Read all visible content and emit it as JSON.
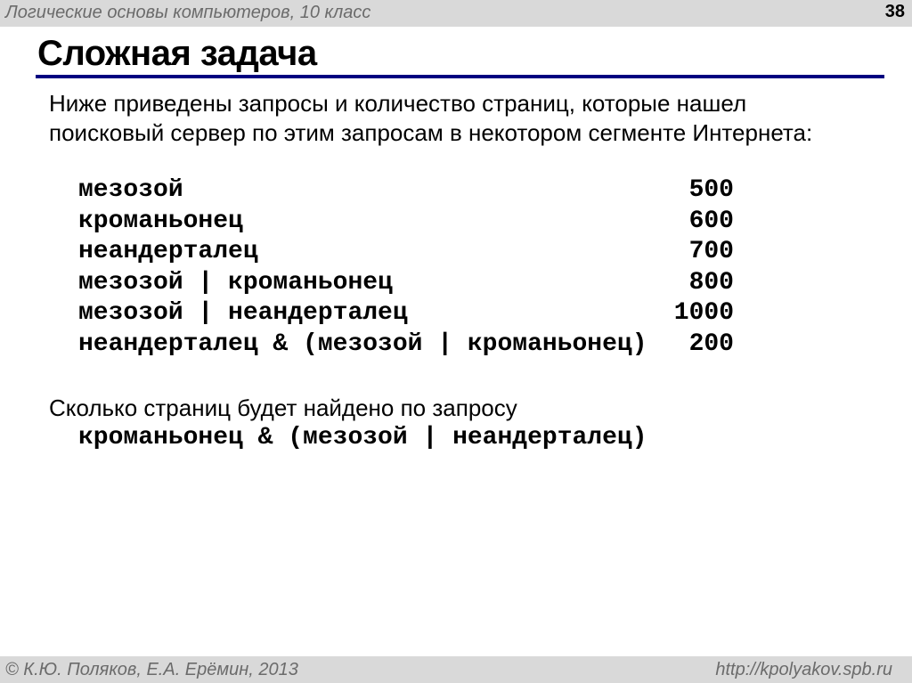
{
  "header": {
    "course": "Логические основы компьютеров, 10 класс",
    "page_number": "38"
  },
  "slide": {
    "title": "Сложная задача",
    "intro": "Ниже приведены запросы и количество страниц, которые нашел поисковый сервер по этим запросам в некотором сегменте Интернета:",
    "queries": [
      {
        "query": "мезозой",
        "pages": "500"
      },
      {
        "query": "кроманьонец",
        "pages": "600"
      },
      {
        "query": "неандерталец",
        "pages": "700"
      },
      {
        "query": "мезозой | кроманьонец",
        "pages": "800"
      },
      {
        "query": "мезозой | неандерталец",
        "pages": "1000"
      },
      {
        "query": "неандерталец & (мезозой | кроманьонец)",
        "pages": "200"
      }
    ],
    "question": "Сколько страниц будет найдено по запросу",
    "target_query": "кроманьонец & (мезозой | неандерталец)"
  },
  "footer": {
    "authors": "© К.Ю. Поляков, Е.А. Ерёмин, 2013",
    "url": "http://kpolyakov.spb.ru"
  },
  "colors": {
    "bar": "#d9d9d9",
    "rule": "#000080",
    "muted_text": "#6b6b6b"
  }
}
